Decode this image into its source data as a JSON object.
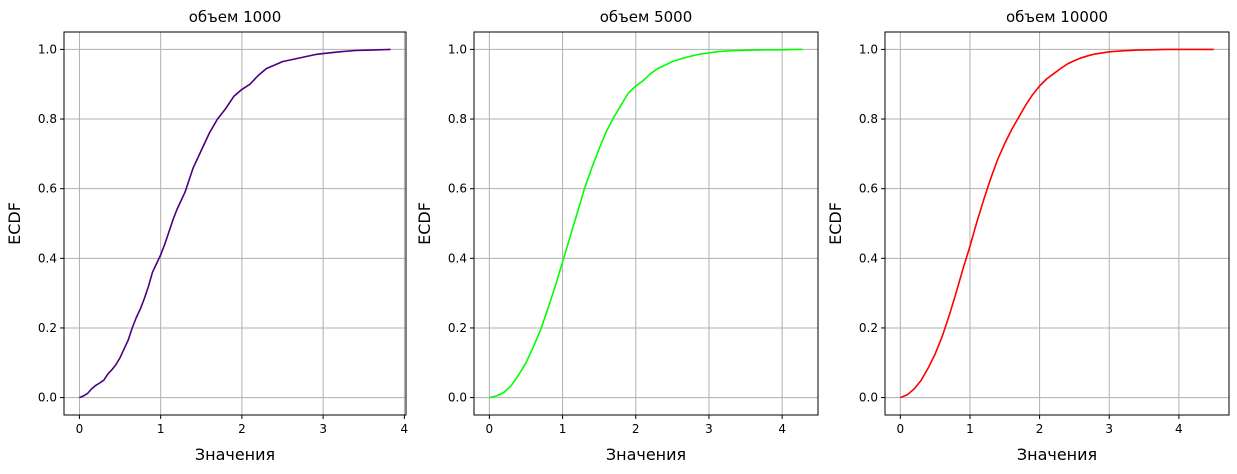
{
  "chart_data": [
    {
      "type": "line",
      "title": "объем 1000",
      "xlabel": "Значения",
      "ylabel": "ECDF",
      "xlim": [
        -0.19,
        4.02
      ],
      "ylim": [
        -0.05,
        1.05
      ],
      "xticks": [
        "0",
        "1",
        "2",
        "3",
        "4"
      ],
      "yticks": [
        "0.0",
        "0.2",
        "0.4",
        "0.6",
        "0.8",
        "1.0"
      ],
      "grid": true,
      "color": "#4b0082",
      "series": [
        {
          "x": [
            0,
            0.05,
            0.1,
            0.15,
            0.2,
            0.25,
            0.3,
            0.35,
            0.4,
            0.45,
            0.5,
            0.55,
            0.6,
            0.65,
            0.7,
            0.75,
            0.8,
            0.85,
            0.9,
            0.95,
            1.0,
            1.05,
            1.1,
            1.15,
            1.2,
            1.3,
            1.4,
            1.5,
            1.6,
            1.7,
            1.8,
            1.9,
            2.0,
            2.1,
            2.2,
            2.3,
            2.4,
            2.5,
            2.6,
            2.7,
            2.8,
            2.9,
            3.0,
            3.2,
            3.4,
            3.6,
            3.83
          ],
          "y": [
            0.0,
            0.005,
            0.012,
            0.025,
            0.035,
            0.042,
            0.05,
            0.068,
            0.08,
            0.095,
            0.115,
            0.14,
            0.165,
            0.2,
            0.23,
            0.255,
            0.285,
            0.32,
            0.36,
            0.385,
            0.41,
            0.44,
            0.475,
            0.51,
            0.54,
            0.59,
            0.66,
            0.71,
            0.76,
            0.8,
            0.83,
            0.865,
            0.885,
            0.9,
            0.925,
            0.945,
            0.955,
            0.965,
            0.97,
            0.975,
            0.98,
            0.985,
            0.988,
            0.993,
            0.997,
            0.998,
            1.0
          ]
        }
      ]
    },
    {
      "type": "line",
      "title": "объем 5000",
      "xlabel": "Значения",
      "ylabel": "ECDF",
      "xlim": [
        -0.21,
        4.49
      ],
      "ylim": [
        -0.05,
        1.05
      ],
      "xticks": [
        "0",
        "1",
        "2",
        "3",
        "4"
      ],
      "yticks": [
        "0.0",
        "0.2",
        "0.4",
        "0.6",
        "0.8",
        "1.0"
      ],
      "grid": true,
      "color": "#00ff00",
      "series": [
        {
          "x": [
            0,
            0.1,
            0.2,
            0.3,
            0.4,
            0.5,
            0.6,
            0.7,
            0.8,
            0.9,
            1.0,
            1.1,
            1.2,
            1.3,
            1.4,
            1.5,
            1.6,
            1.7,
            1.8,
            1.9,
            2.0,
            2.1,
            2.2,
            2.3,
            2.4,
            2.5,
            2.6,
            2.7,
            2.8,
            2.9,
            3.0,
            3.1,
            3.2,
            3.4,
            3.6,
            3.8,
            4.0,
            4.2,
            4.28
          ],
          "y": [
            0.0,
            0.005,
            0.015,
            0.035,
            0.065,
            0.1,
            0.145,
            0.195,
            0.255,
            0.32,
            0.39,
            0.46,
            0.53,
            0.6,
            0.66,
            0.715,
            0.765,
            0.805,
            0.84,
            0.875,
            0.895,
            0.91,
            0.93,
            0.945,
            0.955,
            0.965,
            0.972,
            0.978,
            0.983,
            0.987,
            0.99,
            0.993,
            0.995,
            0.997,
            0.998,
            0.999,
            0.999,
            1.0,
            1.0
          ]
        }
      ]
    },
    {
      "type": "line",
      "title": "объем 10000",
      "xlabel": "Значения",
      "ylabel": "ECDF",
      "xlim": [
        -0.22,
        4.72
      ],
      "ylim": [
        -0.05,
        1.05
      ],
      "xticks": [
        "0",
        "1",
        "2",
        "3",
        "4"
      ],
      "yticks": [
        "0.0",
        "0.2",
        "0.4",
        "0.6",
        "0.8",
        "1.0"
      ],
      "grid": true,
      "color": "#ff0000",
      "series": [
        {
          "x": [
            0,
            0.1,
            0.2,
            0.3,
            0.4,
            0.5,
            0.6,
            0.7,
            0.8,
            0.9,
            1.0,
            1.1,
            1.2,
            1.3,
            1.4,
            1.5,
            1.6,
            1.7,
            1.8,
            1.9,
            2.0,
            2.1,
            2.2,
            2.3,
            2.4,
            2.5,
            2.6,
            2.7,
            2.8,
            2.9,
            3.0,
            3.2,
            3.4,
            3.6,
            3.8,
            4.0,
            4.2,
            4.5
          ],
          "y": [
            0.0,
            0.008,
            0.025,
            0.05,
            0.085,
            0.125,
            0.175,
            0.235,
            0.3,
            0.37,
            0.435,
            0.505,
            0.57,
            0.63,
            0.685,
            0.73,
            0.77,
            0.805,
            0.84,
            0.87,
            0.895,
            0.915,
            0.93,
            0.945,
            0.958,
            0.968,
            0.976,
            0.982,
            0.987,
            0.99,
            0.993,
            0.996,
            0.998,
            0.999,
            1.0,
            1.0,
            1.0,
            1.0
          ]
        }
      ]
    }
  ]
}
